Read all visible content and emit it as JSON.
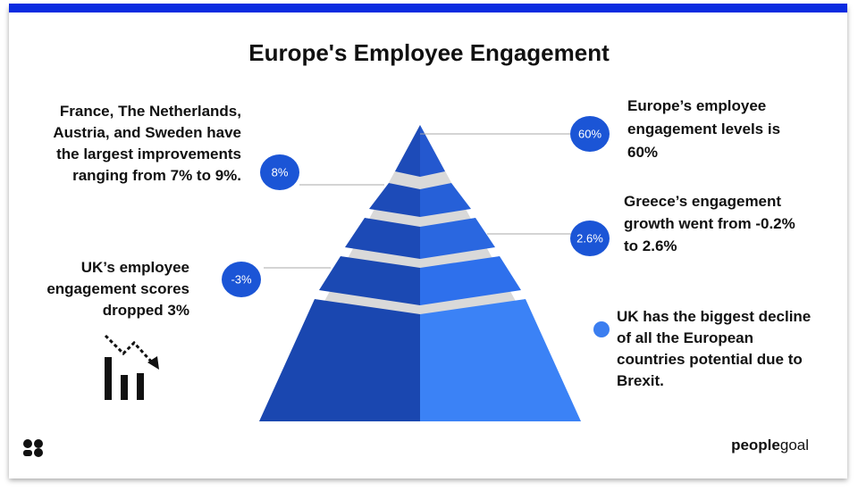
{
  "title": "Europe's Employee Engagement",
  "annotations": [
    {
      "bubble": "60%",
      "lines": [
        "Europe’s employee",
        "engagement levels is",
        "60%"
      ]
    },
    {
      "bubble": "8%",
      "lines": [
        "France, The Netherlands,",
        "Austria, and Sweden have",
        "the largest improvements",
        "ranging from 7% to 9%."
      ]
    },
    {
      "bubble": "2.6%",
      "lines": [
        "Greece’s engagement",
        "growth went from -0.2%",
        "to 2.6%"
      ]
    },
    {
      "bubble": "-3%",
      "lines": [
        "UK’s employee",
        "engagement scores",
        "dropped 3%"
      ]
    },
    {
      "lines": [
        "UK has the biggest decline",
        "of all the European",
        "countries potential due to",
        "Brexit."
      ]
    }
  ],
  "logo": {
    "bold": "people",
    "light": "goal"
  }
}
